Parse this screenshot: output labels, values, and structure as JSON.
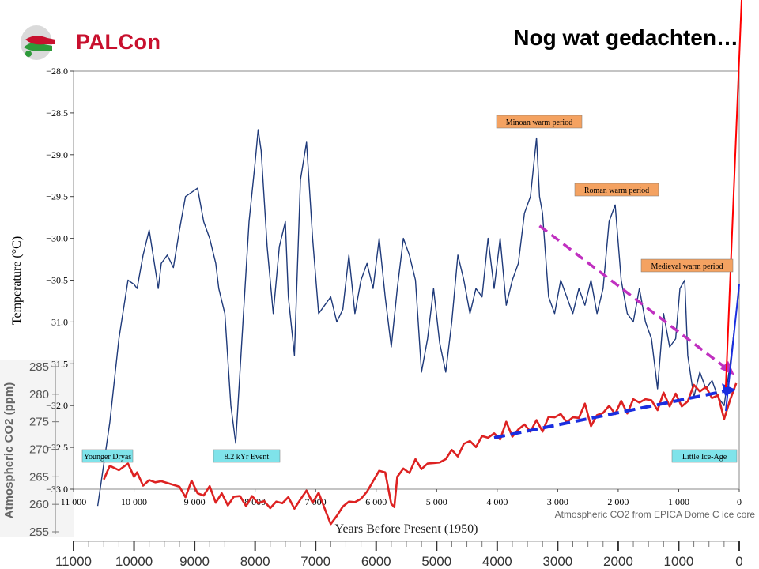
{
  "header": {
    "logo_text": "PALCon",
    "title": "Nog wat gedachten…"
  },
  "colors": {
    "temperature": "#1f3a7a",
    "co2": "#dd2222",
    "trend_temperature": "#c030c0",
    "trend_co2": "#1a2ee0",
    "warm_label_bg": "#f4a261",
    "cold_label_bg": "#7fe3ea",
    "red_line": "#ff0000"
  },
  "chart_data": [
    {
      "type": "line",
      "title": "",
      "xlabel": "Years Before Present (1950)",
      "ylabel": "Temperature (°C)",
      "xlim": [
        11000,
        0
      ],
      "ylim": [
        -33.0,
        -28.0
      ],
      "x_ticks": [
        "11 000",
        "10 000",
        "9 000",
        "8 000",
        "7 000",
        "6 000",
        "5 000",
        "4 000",
        "3 000",
        "2 000",
        "1 000",
        "0"
      ],
      "y_ticks": [
        "−28.0",
        "−28.5",
        "−29.0",
        "−29.5",
        "−30.0",
        "−30.5",
        "−31.0",
        "−31.5",
        "−32.0",
        "−32.5",
        "−33.0"
      ],
      "series": [
        {
          "x": [
            10600,
            10400,
            10250,
            10100,
            10000,
            9950,
            9850,
            9750,
            9600,
            9550,
            9450,
            9350,
            9250,
            9150,
            9050,
            8950,
            8850,
            8750,
            8650,
            8600,
            8500,
            8400,
            8320,
            8200,
            8100,
            8000,
            7950,
            7900,
            7800,
            7700,
            7600,
            7500,
            7450,
            7350,
            7250,
            7150,
            7050,
            6950,
            6850,
            6750,
            6650,
            6550,
            6450,
            6350,
            6250,
            6150,
            6050,
            5950,
            5850,
            5750,
            5650,
            5550,
            5450,
            5350,
            5250,
            5150,
            5050,
            4950,
            4850,
            4750,
            4650,
            4550,
            4450,
            4350,
            4250,
            4150,
            4050,
            3950,
            3850,
            3750,
            3650,
            3550,
            3450,
            3350,
            3300,
            3250,
            3150,
            3050,
            2950,
            2850,
            2750,
            2650,
            2550,
            2450,
            2350,
            2250,
            2150,
            2050,
            1950,
            1850,
            1750,
            1650,
            1550,
            1450,
            1350,
            1250,
            1150,
            1050,
            980,
            900,
            850,
            750,
            650,
            550,
            450,
            350,
            250,
            150,
            0
          ],
          "y": [
            -33.2,
            -32.2,
            -31.2,
            -30.5,
            -30.55,
            -30.6,
            -30.2,
            -29.9,
            -30.6,
            -30.3,
            -30.2,
            -30.35,
            -29.9,
            -29.5,
            -29.45,
            -29.4,
            -29.8,
            -30.0,
            -30.3,
            -30.6,
            -30.9,
            -32.0,
            -32.45,
            -31.0,
            -29.8,
            -29.1,
            -28.7,
            -28.95,
            -30.1,
            -30.9,
            -30.1,
            -29.8,
            -30.7,
            -31.4,
            -29.3,
            -28.85,
            -30.0,
            -30.9,
            -30.8,
            -30.7,
            -31.0,
            -30.85,
            -30.2,
            -30.9,
            -30.5,
            -30.3,
            -30.6,
            -30.0,
            -30.7,
            -31.3,
            -30.6,
            -30.0,
            -30.2,
            -30.5,
            -31.6,
            -31.2,
            -30.6,
            -31.25,
            -31.6,
            -31.0,
            -30.2,
            -30.5,
            -30.9,
            -30.6,
            -30.7,
            -30.0,
            -30.6,
            -30.0,
            -30.8,
            -30.5,
            -30.3,
            -29.7,
            -29.5,
            -28.8,
            -29.5,
            -29.7,
            -30.7,
            -30.9,
            -30.5,
            -30.7,
            -30.9,
            -30.6,
            -30.8,
            -30.5,
            -30.9,
            -30.6,
            -29.8,
            -29.6,
            -30.5,
            -30.9,
            -31.0,
            -30.6,
            -31.0,
            -31.2,
            -31.8,
            -30.9,
            -31.3,
            -31.2,
            -30.6,
            -30.5,
            -31.4,
            -31.9,
            -31.6,
            -31.8,
            -31.7,
            -31.9,
            -32.0,
            -31.5,
            -30.6
          ]
        }
      ],
      "annotations": [
        "Minoan warm period",
        "Roman warm period",
        "Medieval warm period",
        "Younger Dryas",
        "8.2 kYr Event",
        "Little Ice-Age"
      ]
    },
    {
      "type": "line",
      "title": "",
      "xlabel": "Atmospheric CO2 from EPICA Dome C ice core",
      "ylabel": "Atmospheric CO2 (ppm)",
      "xlim": [
        11000,
        0
      ],
      "ylim": [
        255,
        285
      ],
      "x_ticks": [
        "11000",
        "10000",
        "9000",
        "8000",
        "7000",
        "6000",
        "5000",
        "4000",
        "3000",
        "2000",
        "1000",
        "0"
      ],
      "y_ticks": [
        "285",
        "280",
        "275",
        "270",
        "265",
        "260",
        "255"
      ],
      "series": [
        {
          "x": [
            10500,
            10400,
            10250,
            10100,
            10000,
            9950,
            9850,
            9750,
            9650,
            9550,
            9400,
            9250,
            9150,
            9050,
            8950,
            8850,
            8750,
            8650,
            8550,
            8450,
            8350,
            8250,
            8150,
            8050,
            7950,
            7850,
            7750,
            7650,
            7550,
            7450,
            7350,
            7250,
            7150,
            7050,
            6950,
            6850,
            6750,
            6650,
            6550,
            6450,
            6350,
            6250,
            6150,
            6050,
            5950,
            5850,
            5750,
            5700,
            5650,
            5550,
            5450,
            5350,
            5250,
            5150,
            5050,
            4950,
            4850,
            4750,
            4650,
            4550,
            4450,
            4350,
            4250,
            4150,
            4050,
            3950,
            3850,
            3750,
            3650,
            3550,
            3450,
            3350,
            3250,
            3150,
            3050,
            2950,
            2850,
            2750,
            2650,
            2550,
            2450,
            2350,
            2250,
            2150,
            2050,
            1950,
            1850,
            1750,
            1650,
            1550,
            1450,
            1350,
            1250,
            1150,
            1050,
            950,
            850,
            750,
            650,
            550,
            450,
            350,
            250,
            150,
            50
          ],
          "y": [
            264.5,
            267.0,
            266.2,
            267.4,
            265.0,
            265.8,
            263.4,
            264.4,
            264.0,
            264.2,
            263.7,
            263.2,
            261.3,
            264.3,
            262.0,
            261.6,
            263.3,
            260.3,
            262.0,
            259.8,
            261.4,
            261.5,
            259.7,
            261.5,
            260.2,
            260.6,
            259.3,
            260.5,
            260.2,
            261.3,
            259.2,
            260.9,
            262.5,
            260.3,
            262.1,
            259.2,
            256.4,
            257.9,
            259.6,
            260.5,
            260.4,
            261.0,
            262.3,
            264.2,
            266.1,
            265.8,
            260.1,
            259.5,
            265.0,
            266.5,
            265.7,
            268.2,
            266.4,
            267.4,
            267.5,
            267.6,
            268.2,
            269.9,
            268.7,
            271.0,
            271.5,
            270.4,
            272.4,
            272.1,
            272.9,
            271.8,
            275.0,
            272.3,
            273.6,
            274.5,
            273.2,
            275.3,
            273.2,
            275.9,
            275.8,
            276.4,
            274.9,
            275.8,
            275.7,
            278.3,
            274.2,
            276.2,
            276.6,
            277.9,
            276.4,
            278.8,
            276.5,
            279.1,
            278.5,
            279.1,
            278.9,
            277.1,
            280.3,
            277.8,
            280.1,
            277.8,
            278.7,
            281.7,
            280.5,
            281.3,
            279.3,
            279.8,
            275.5,
            279.0,
            282.0
          ]
        }
      ]
    },
    {
      "type": "line",
      "title": "",
      "xlabel": "",
      "ylabel": "",
      "series": [
        {
          "name": "trend-temperature",
          "x": [
            3300,
            130
          ],
          "y": [
            -29.85,
            -31.6
          ]
        },
        {
          "name": "trend-co2",
          "x": [
            4050,
            130
          ],
          "y": [
            272.1,
            280.8
          ]
        }
      ]
    }
  ],
  "bottom_axis": {
    "ticks": [
      "11000",
      "10000",
      "9000",
      "8000",
      "7000",
      "6000",
      "5000",
      "4000",
      "3000",
      "2000",
      "1000",
      "0"
    ]
  }
}
